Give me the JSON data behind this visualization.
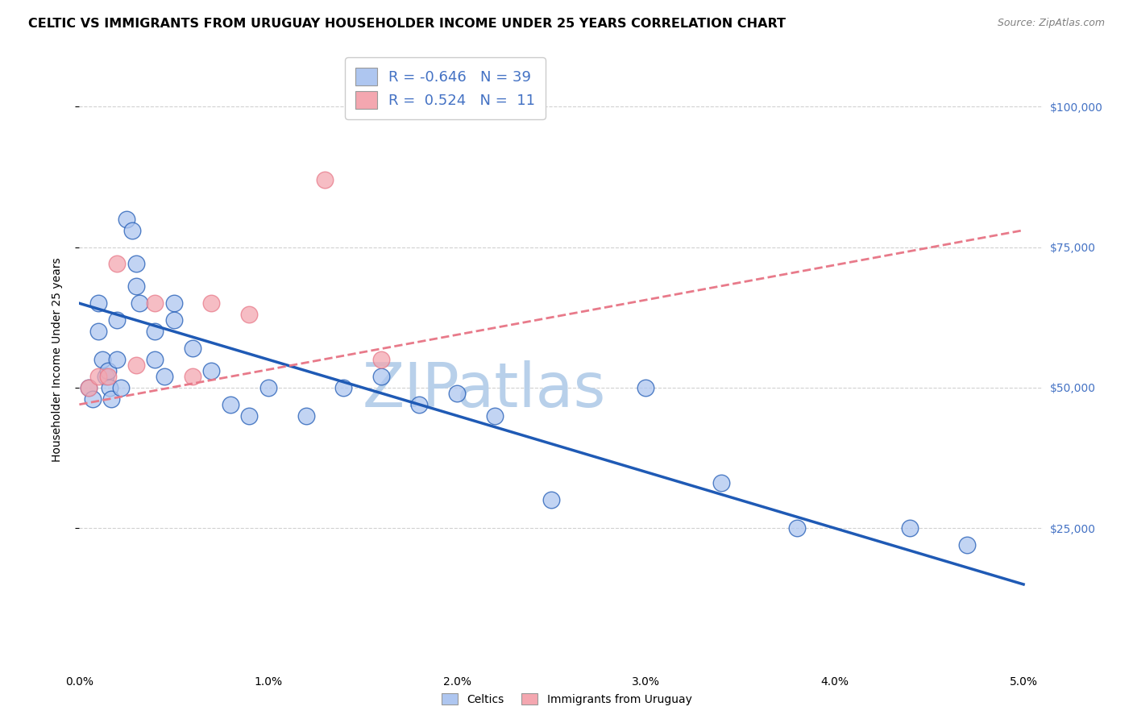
{
  "title": "CELTIC VS IMMIGRANTS FROM URUGUAY HOUSEHOLDER INCOME UNDER 25 YEARS CORRELATION CHART",
  "source": "Source: ZipAtlas.com",
  "ylabel": "Householder Income Under 25 years",
  "legend_celtics_R": "-0.646",
  "legend_celtics_N": "39",
  "legend_uruguay_R": "0.524",
  "legend_uruguay_N": "11",
  "celtics_color": "#aec6f0",
  "uruguay_color": "#f4a7b0",
  "celtics_line_color": "#1f5ab5",
  "uruguay_line_color": "#e87a8a",
  "background_color": "#ffffff",
  "grid_color": "#cccccc",
  "axis_label_color": "#4472c4",
  "ylim": [
    0,
    110000
  ],
  "xlim": [
    0.0,
    0.051
  ],
  "yticks": [
    25000,
    50000,
    75000,
    100000
  ],
  "xticks": [
    0.0,
    0.01,
    0.02,
    0.03,
    0.04,
    0.05
  ],
  "celtics_x": [
    0.0005,
    0.0007,
    0.001,
    0.001,
    0.0012,
    0.0014,
    0.0015,
    0.0016,
    0.0017,
    0.002,
    0.002,
    0.0022,
    0.0025,
    0.0028,
    0.003,
    0.003,
    0.0032,
    0.004,
    0.004,
    0.0045,
    0.005,
    0.005,
    0.006,
    0.007,
    0.008,
    0.009,
    0.01,
    0.012,
    0.014,
    0.016,
    0.018,
    0.02,
    0.022,
    0.025,
    0.03,
    0.034,
    0.038,
    0.044,
    0.047
  ],
  "celtics_y": [
    50000,
    48000,
    65000,
    60000,
    55000,
    52000,
    53000,
    50000,
    48000,
    62000,
    55000,
    50000,
    80000,
    78000,
    72000,
    68000,
    65000,
    60000,
    55000,
    52000,
    65000,
    62000,
    57000,
    53000,
    47000,
    45000,
    50000,
    45000,
    50000,
    52000,
    47000,
    49000,
    45000,
    30000,
    50000,
    33000,
    25000,
    25000,
    22000
  ],
  "uruguay_x": [
    0.0005,
    0.001,
    0.0015,
    0.002,
    0.003,
    0.004,
    0.006,
    0.007,
    0.009,
    0.013,
    0.016
  ],
  "uruguay_y": [
    50000,
    52000,
    52000,
    72000,
    54000,
    65000,
    52000,
    65000,
    63000,
    87000,
    55000
  ],
  "celtics_trendline_x": [
    0.0,
    0.05
  ],
  "celtics_trendline_y": [
    65000,
    15000
  ],
  "uruguay_trendline_x": [
    0.0,
    0.05
  ],
  "uruguay_trendline_y": [
    47000,
    78000
  ],
  "watermark": "ZIPatlas",
  "watermark_color": "#b8d0ea",
  "watermark_fontsize": 55,
  "title_fontsize": 11.5,
  "source_fontsize": 9,
  "ylabel_fontsize": 10,
  "legend_fontsize": 13,
  "tick_fontsize": 10
}
